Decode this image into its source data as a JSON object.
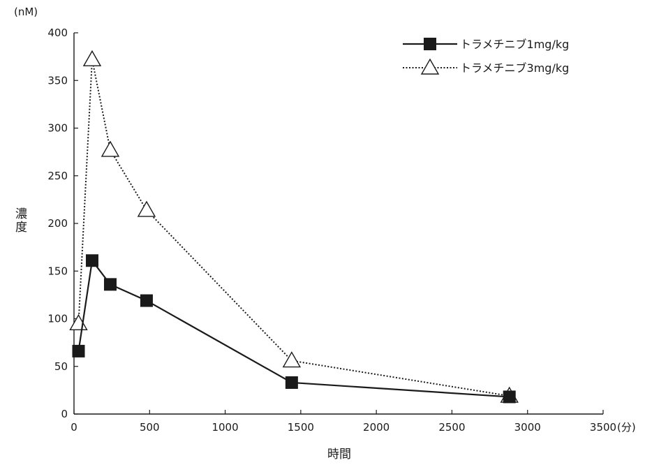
{
  "chart_data": {
    "type": "line",
    "title": "",
    "xlabel": "時間",
    "x_unit": "(分)",
    "ylabel": "濃度",
    "y_unit": "(nM)",
    "xlim": [
      0,
      3500
    ],
    "ylim": [
      0,
      400
    ],
    "x_ticks": [
      0,
      500,
      1000,
      1500,
      2000,
      2500,
      3000,
      3500
    ],
    "y_ticks": [
      0,
      50,
      100,
      150,
      200,
      250,
      300,
      350,
      400
    ],
    "grid": false,
    "legend_position": "top-right",
    "series": [
      {
        "name": "トラメチニブ1mg/kg",
        "marker": "filled-square",
        "line_style": "solid",
        "color": "#1a1a1a",
        "x": [
          30,
          120,
          240,
          480,
          1440,
          2880
        ],
        "y": [
          66,
          161,
          136,
          119,
          33,
          18
        ]
      },
      {
        "name": "トラメチニブ3mg/kg",
        "marker": "open-triangle",
        "line_style": "dotted",
        "color": "#1a1a1a",
        "x": [
          30,
          120,
          240,
          480,
          1440,
          2880
        ],
        "y": [
          95,
          372,
          277,
          214,
          56,
          19
        ]
      }
    ]
  }
}
